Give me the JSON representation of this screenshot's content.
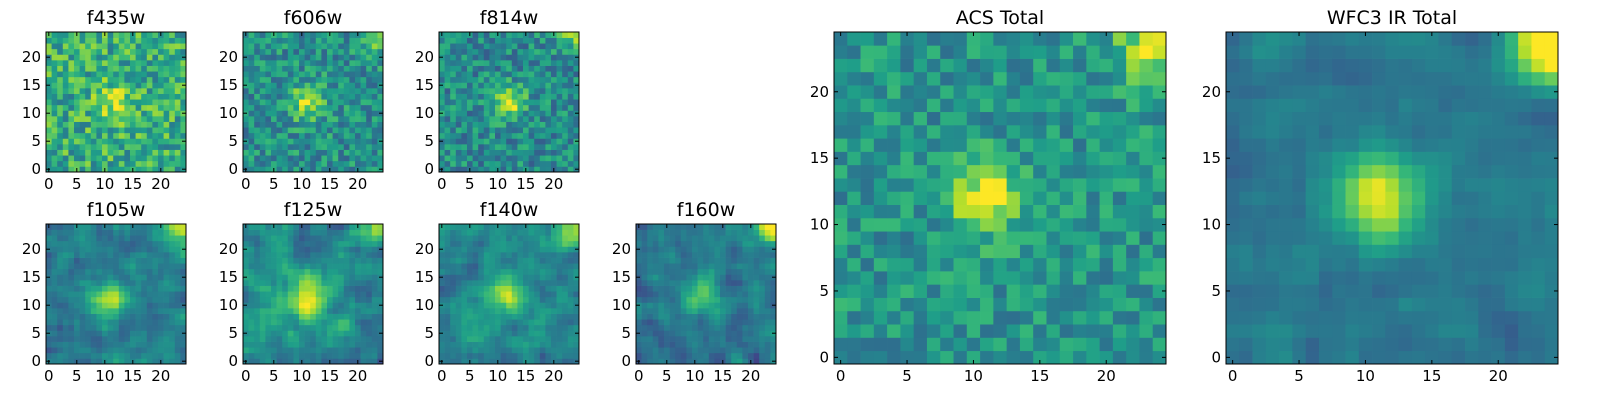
{
  "chart_data": [
    {
      "type": "heatmap",
      "title": "f435w",
      "grid_size": 25,
      "xlim": [
        0,
        24
      ],
      "ylim": [
        0,
        24
      ],
      "xticks": [
        0,
        5,
        10,
        15,
        20
      ],
      "yticks": [
        0,
        5,
        10,
        15,
        20
      ],
      "xtick_labels": [
        "0",
        "5",
        "10",
        "15",
        "20"
      ],
      "ytick_labels": [
        "0",
        "5",
        "10",
        "15",
        "20"
      ],
      "colormap": "viridis",
      "peak": [
        12,
        12
      ],
      "peak_sigma": 2.5,
      "peak_strength": 0.25,
      "noise": 0.45,
      "corner_strength": 0.0,
      "smooth": 0,
      "base": 0.62,
      "seed": 11
    },
    {
      "type": "heatmap",
      "title": "f606w",
      "grid_size": 25,
      "xlim": [
        0,
        24
      ],
      "ylim": [
        0,
        24
      ],
      "xticks": [
        0,
        5,
        10,
        15,
        20
      ],
      "yticks": [
        0,
        5,
        10,
        15,
        20
      ],
      "xtick_labels": [
        "0",
        "5",
        "10",
        "15",
        "20"
      ],
      "ytick_labels": [
        "0",
        "5",
        "10",
        "15",
        "20"
      ],
      "colormap": "viridis",
      "peak": [
        11,
        12
      ],
      "peak_sigma": 2.2,
      "peak_strength": 0.4,
      "noise": 0.38,
      "corner_strength": 0.35,
      "smooth": 0,
      "base": 0.5,
      "seed": 23
    },
    {
      "type": "heatmap",
      "title": "f814w",
      "grid_size": 25,
      "xlim": [
        0,
        24
      ],
      "ylim": [
        0,
        24
      ],
      "xticks": [
        0,
        5,
        10,
        15,
        20
      ],
      "yticks": [
        0,
        5,
        10,
        15,
        20
      ],
      "xtick_labels": [
        "0",
        "5",
        "10",
        "15",
        "20"
      ],
      "ytick_labels": [
        "0",
        "5",
        "10",
        "15",
        "20"
      ],
      "colormap": "viridis",
      "peak": [
        12,
        12
      ],
      "peak_sigma": 2.0,
      "peak_strength": 0.45,
      "noise": 0.38,
      "corner_strength": 0.3,
      "smooth": 0,
      "base": 0.48,
      "seed": 37
    },
    {
      "type": "heatmap",
      "title": "f105w",
      "grid_size": 25,
      "xlim": [
        0,
        24
      ],
      "ylim": [
        0,
        24
      ],
      "xticks": [
        0,
        5,
        10,
        15,
        20
      ],
      "yticks": [
        0,
        5,
        10,
        15,
        20
      ],
      "xtick_labels": [
        "0",
        "5",
        "10",
        "15",
        "20"
      ],
      "ytick_labels": [
        "0",
        "5",
        "10",
        "15",
        "20"
      ],
      "colormap": "viridis",
      "peak": [
        11,
        11
      ],
      "peak_sigma": 2.4,
      "peak_strength": 0.45,
      "noise": 0.35,
      "corner_strength": 0.5,
      "smooth": 1,
      "base": 0.42,
      "seed": 41
    },
    {
      "type": "heatmap",
      "title": "f125w",
      "grid_size": 25,
      "xlim": [
        0,
        24
      ],
      "ylim": [
        0,
        24
      ],
      "xticks": [
        0,
        5,
        10,
        15,
        20
      ],
      "yticks": [
        0,
        5,
        10,
        15,
        20
      ],
      "xtick_labels": [
        "0",
        "5",
        "10",
        "15",
        "20"
      ],
      "ytick_labels": [
        "0",
        "5",
        "10",
        "15",
        "20"
      ],
      "colormap": "viridis",
      "peak": [
        11,
        11
      ],
      "peak_sigma": 2.6,
      "peak_strength": 0.5,
      "noise": 0.4,
      "corner_strength": 0.5,
      "smooth": 1,
      "base": 0.48,
      "seed": 53
    },
    {
      "type": "heatmap",
      "title": "f140w",
      "grid_size": 25,
      "xlim": [
        0,
        24
      ],
      "ylim": [
        0,
        24
      ],
      "xticks": [
        0,
        5,
        10,
        15,
        20
      ],
      "yticks": [
        0,
        5,
        10,
        15,
        20
      ],
      "xtick_labels": [
        "0",
        "5",
        "10",
        "15",
        "20"
      ],
      "ytick_labels": [
        "0",
        "5",
        "10",
        "15",
        "20"
      ],
      "colormap": "viridis",
      "peak": [
        11,
        12
      ],
      "peak_sigma": 2.4,
      "peak_strength": 0.4,
      "noise": 0.36,
      "corner_strength": 0.45,
      "smooth": 1,
      "base": 0.47,
      "seed": 67
    },
    {
      "type": "heatmap",
      "title": "f160w",
      "grid_size": 25,
      "xlim": [
        0,
        24
      ],
      "ylim": [
        0,
        24
      ],
      "xticks": [
        0,
        5,
        10,
        15,
        20
      ],
      "yticks": [
        0,
        5,
        10,
        15,
        20
      ],
      "xtick_labels": [
        "0",
        "5",
        "10",
        "15",
        "20"
      ],
      "ytick_labels": [
        "0",
        "5",
        "10",
        "15",
        "20"
      ],
      "colormap": "viridis",
      "peak": [
        11,
        12
      ],
      "peak_sigma": 2.6,
      "peak_strength": 0.35,
      "noise": 0.34,
      "corner_strength": 0.6,
      "smooth": 1,
      "base": 0.4,
      "seed": 79
    },
    {
      "type": "heatmap",
      "title": "ACS Total",
      "grid_size": 25,
      "xlim": [
        0,
        24
      ],
      "ylim": [
        0,
        24
      ],
      "xticks": [
        0,
        5,
        10,
        15,
        20
      ],
      "yticks": [
        0,
        5,
        10,
        15,
        20
      ],
      "xtick_labels": [
        "0",
        "5",
        "10",
        "15",
        "20"
      ],
      "ytick_labels": [
        "0",
        "5",
        "10",
        "15",
        "20"
      ],
      "colormap": "viridis",
      "peak": [
        11,
        12
      ],
      "peak_sigma": 1.8,
      "peak_strength": 0.5,
      "noise": 0.32,
      "corner_strength": 0.45,
      "smooth": 0,
      "base": 0.52,
      "seed": 97
    },
    {
      "type": "heatmap",
      "title": "WFC3 IR Total",
      "grid_size": 25,
      "xlim": [
        0,
        24
      ],
      "ylim": [
        0,
        24
      ],
      "xticks": [
        0,
        5,
        10,
        15,
        20
      ],
      "yticks": [
        0,
        5,
        10,
        15,
        20
      ],
      "xtick_labels": [
        "0",
        "5",
        "10",
        "15",
        "20"
      ],
      "ytick_labels": [
        "0",
        "5",
        "10",
        "15",
        "20"
      ],
      "colormap": "viridis",
      "peak": [
        11,
        12
      ],
      "peak_sigma": 2.3,
      "peak_strength": 0.55,
      "noise": 0.22,
      "corner_strength": 0.75,
      "smooth": 1,
      "base": 0.4,
      "seed": 113
    }
  ]
}
